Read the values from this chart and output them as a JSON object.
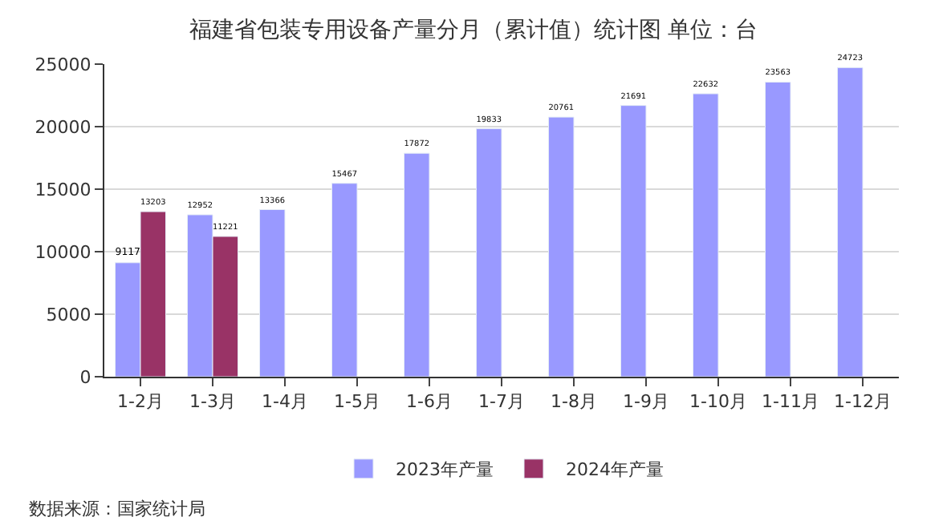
{
  "chart_data": {
    "type": "bar",
    "title": "福建省包装专用设备产量分月（累计值）统计图 单位：台",
    "categories": [
      "1-2月",
      "1-3月",
      "1-4月",
      "1-5月",
      "1-6月",
      "1-7月",
      "1-8月",
      "1-9月",
      "1-10月",
      "1-11月",
      "1-12月"
    ],
    "series": [
      {
        "name": "2023年产量",
        "color": "#9999ff",
        "values": [
          9117,
          12952,
          13366,
          15467,
          17872,
          19833,
          20761,
          21691,
          22632,
          23563,
          24723
        ]
      },
      {
        "name": "2024年产量",
        "color": "#993366",
        "values": [
          13203,
          11221,
          null,
          null,
          null,
          null,
          null,
          null,
          null,
          null,
          null
        ]
      }
    ],
    "ylim": [
      0,
      25000
    ],
    "yticks": [
      0,
      5000,
      10000,
      15000,
      20000,
      25000
    ],
    "grid": "y",
    "legend": "bottom",
    "data_labels": true,
    "annotations": [
      "数据来源：国家统计局"
    ]
  }
}
